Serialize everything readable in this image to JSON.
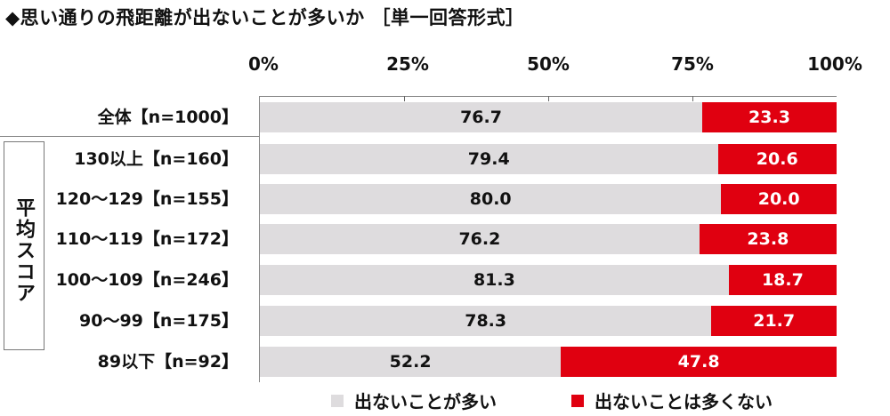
{
  "chart_data": {
    "type": "bar",
    "orientation": "horizontal",
    "stacked": true,
    "title": "◆思い通りの飛距離が出ないことが多いか ［単一回答形式］",
    "xlabel": "",
    "ylabel": "",
    "xlim": [
      0,
      100
    ],
    "x_ticks": [
      "0%",
      "25%",
      "50%",
      "75%",
      "100%"
    ],
    "group_label": "平均スコア",
    "categories": [
      "全体【n=1000】",
      "130以上【n=160】",
      "120～129【n=155】",
      "110～119【n=172】",
      "100～109【n=246】",
      "90～99【n=175】",
      "89以下【n=92】"
    ],
    "series": [
      {
        "name": "出ないことが多い",
        "color": "#dedcde",
        "values": [
          76.7,
          79.4,
          80.0,
          76.2,
          81.3,
          78.3,
          52.2
        ]
      },
      {
        "name": "出ないことは多くない",
        "color": "#e00010",
        "values": [
          23.3,
          20.6,
          20.0,
          23.8,
          18.7,
          21.7,
          47.8
        ]
      }
    ],
    "value_labels": [
      [
        "76.7",
        "23.3"
      ],
      [
        "79.4",
        "20.6"
      ],
      [
        "80.0",
        "20.0"
      ],
      [
        "76.2",
        "23.8"
      ],
      [
        "81.3",
        "18.7"
      ],
      [
        "78.3",
        "21.7"
      ],
      [
        "52.2",
        "47.8"
      ]
    ],
    "legend_position": "bottom",
    "grid": false
  }
}
